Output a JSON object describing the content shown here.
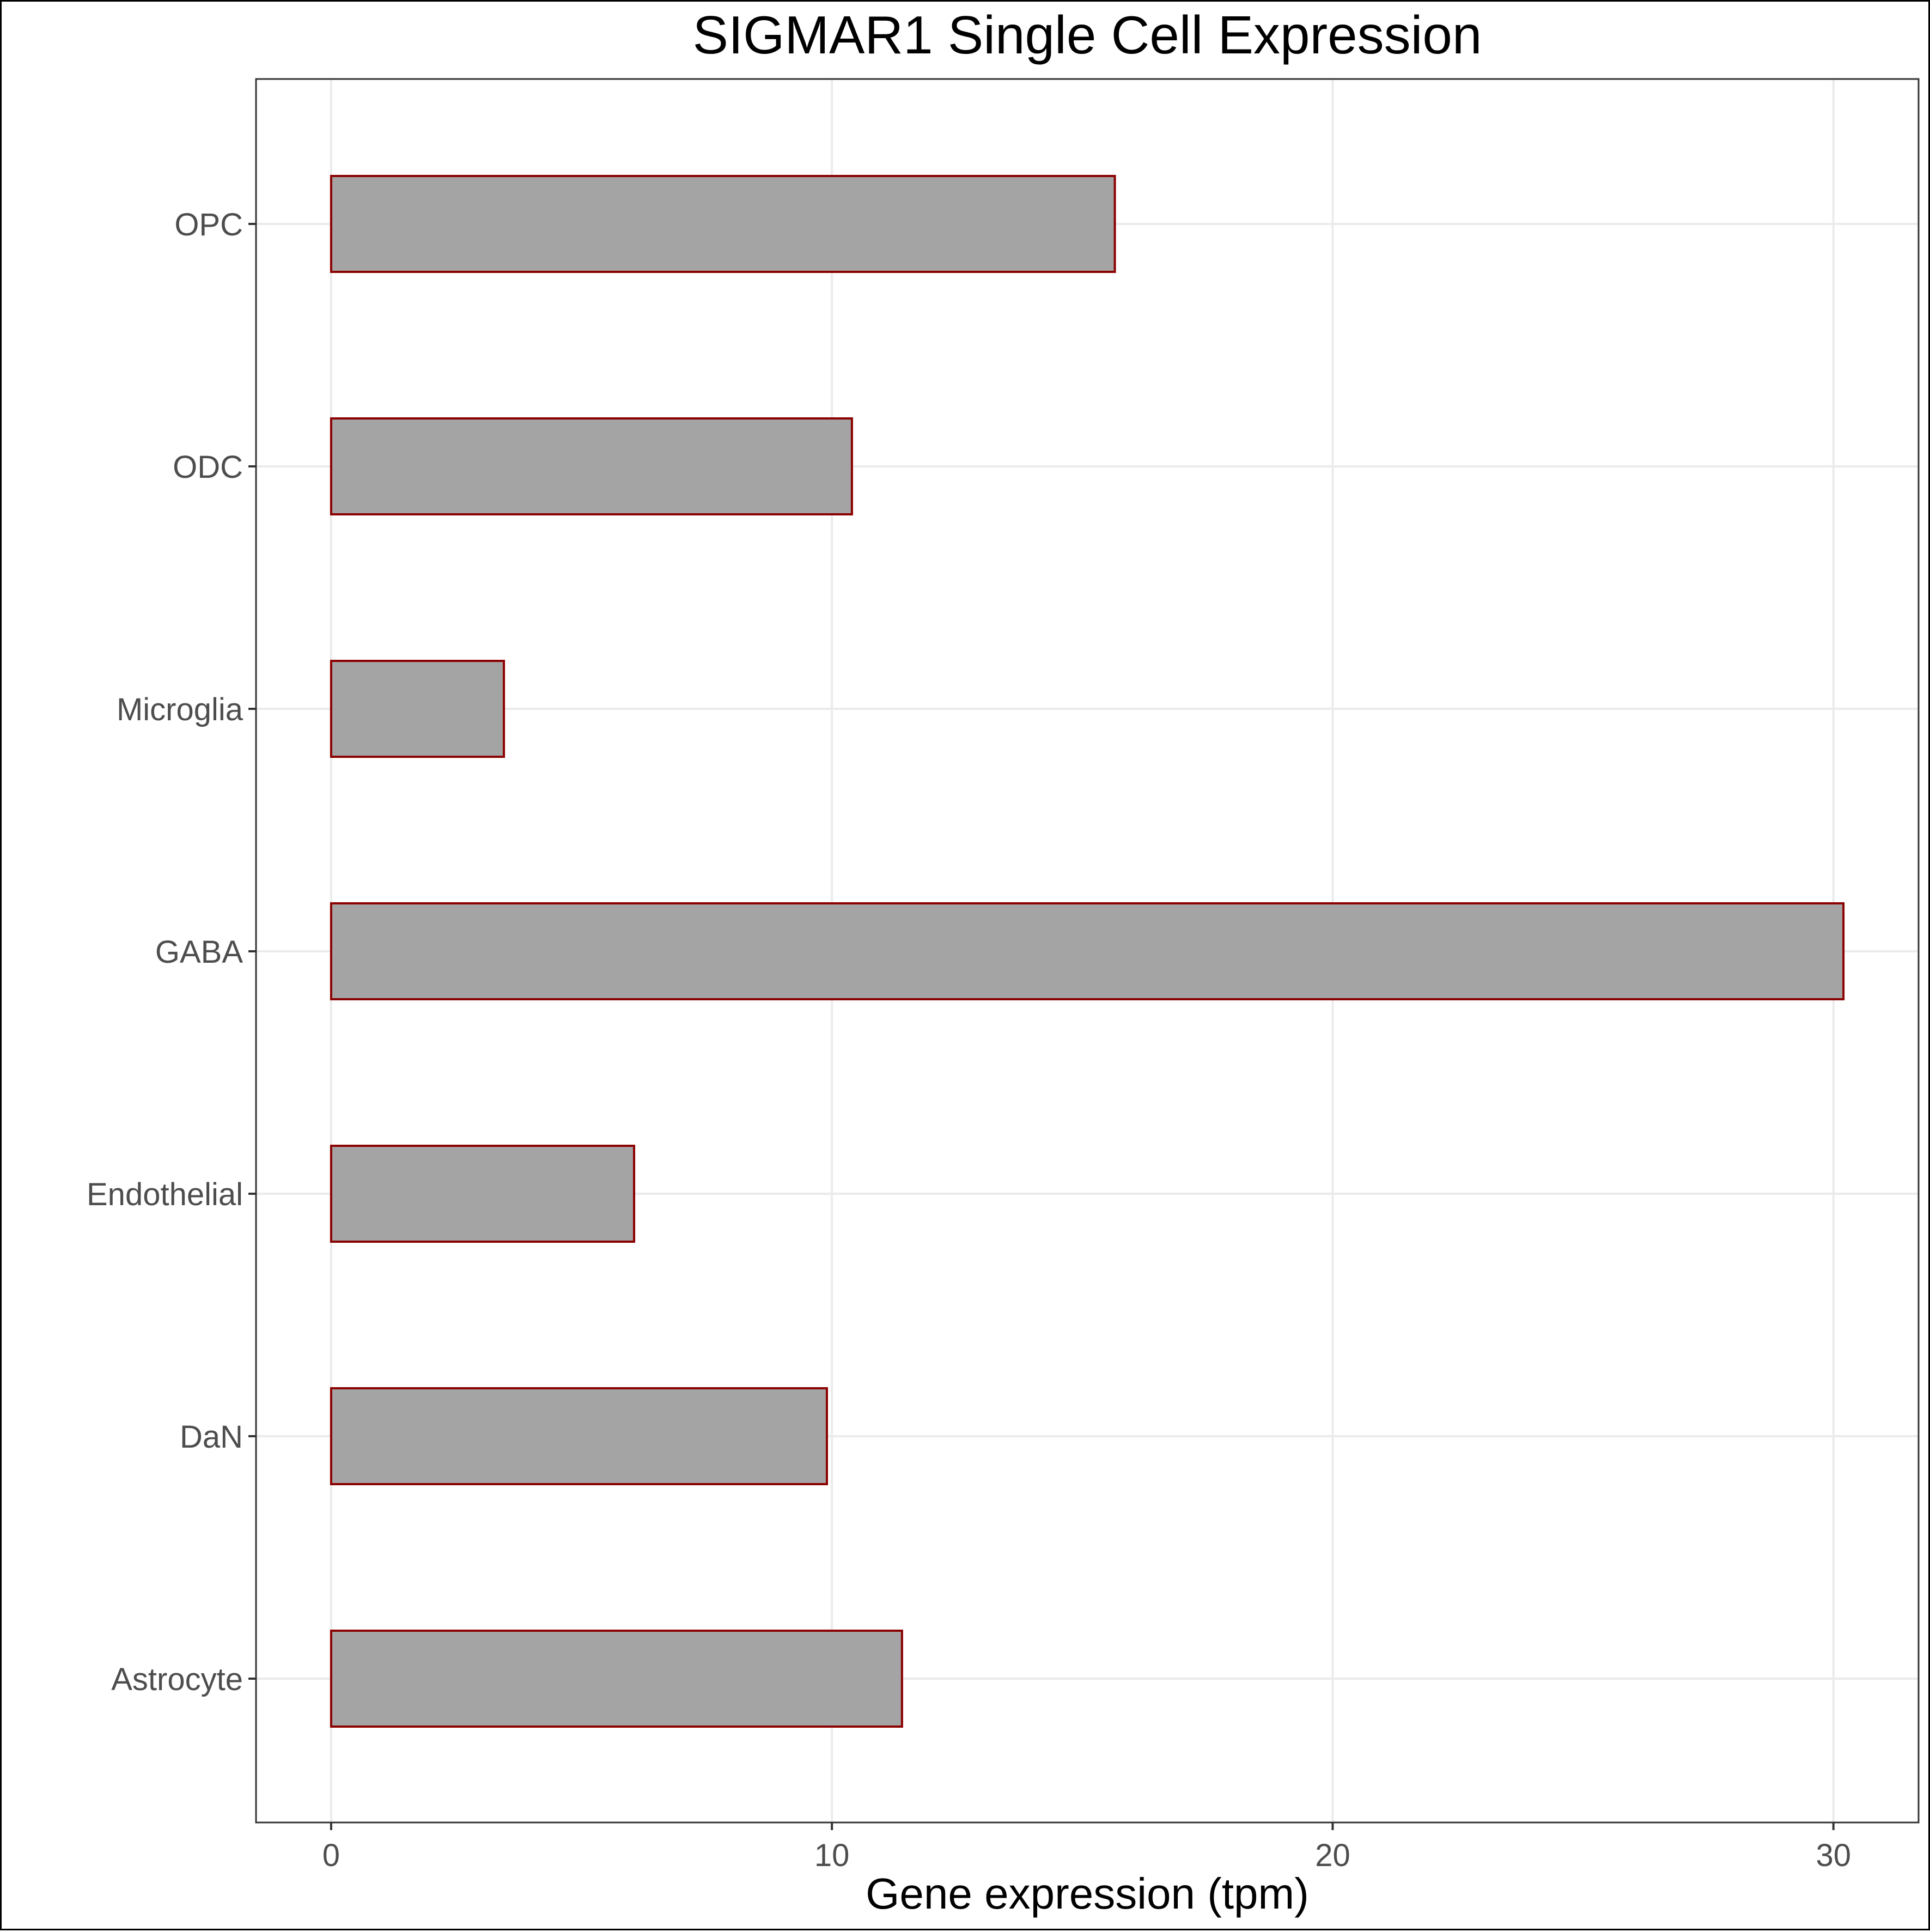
{
  "chart_data": {
    "type": "bar",
    "orientation": "horizontal",
    "title": "SIGMAR1 Single Cell Expression",
    "xlabel": "Gene expression (tpm)",
    "ylabel": "",
    "categories": [
      "Astrocyte",
      "DaN",
      "Endothelial",
      "GABA",
      "Microglia",
      "ODC",
      "OPC"
    ],
    "values": [
      11.4,
      9.9,
      6.05,
      30.2,
      3.45,
      10.4,
      15.65
    ],
    "xlim": [
      -1.5,
      31.7
    ],
    "xticks": [
      0,
      10,
      20,
      30
    ],
    "xtick_labels": [
      "0",
      "10",
      "20",
      "30"
    ],
    "grid": true,
    "legend": "none",
    "colors": {
      "bar_fill": "#a4a4a4",
      "bar_outline": "#8b0000",
      "grid": "#ebebeb",
      "tick_text": "#4d4d4d"
    }
  }
}
